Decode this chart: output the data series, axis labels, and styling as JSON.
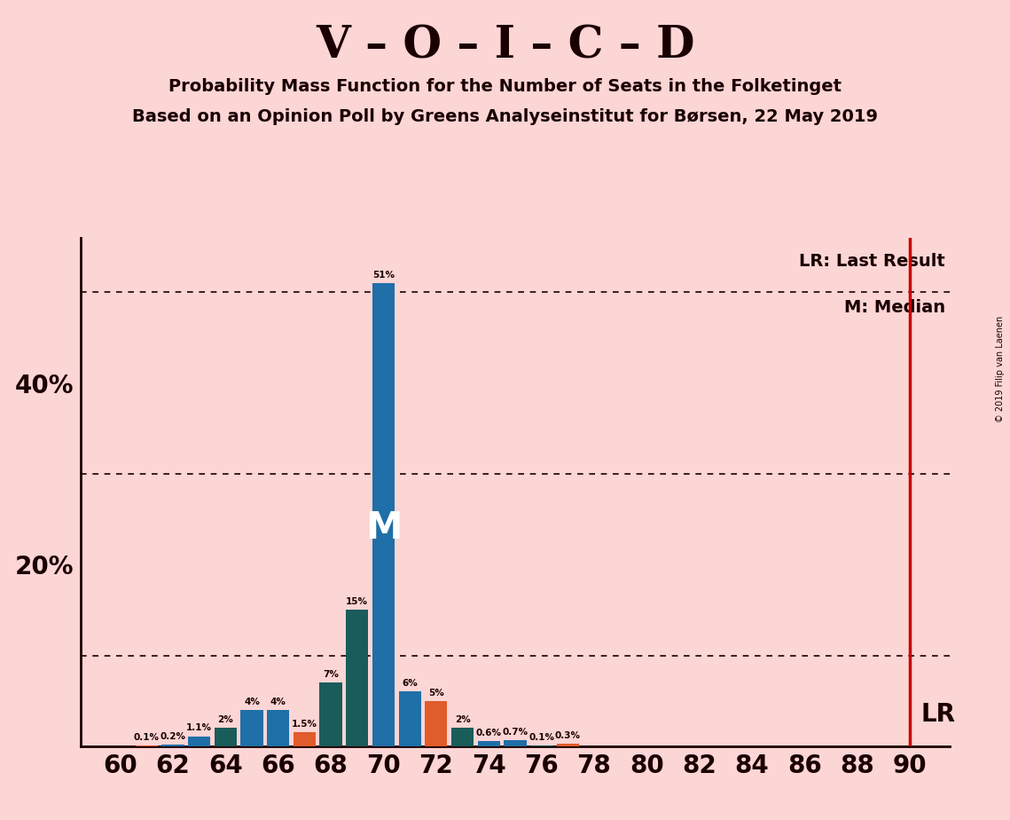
{
  "title": "V – O – I – C – D",
  "subtitle1": "Probability Mass Function for the Number of Seats in the Folketinget",
  "subtitle2": "Based on an Opinion Poll by Greens Analyseinstitut for Børsen, 22 May 2019",
  "copyright": "© 2019 Filip van Laenen",
  "background_color": "#fcd5d5",
  "seats": [
    60,
    61,
    62,
    63,
    64,
    65,
    66,
    67,
    68,
    69,
    70,
    71,
    72,
    73,
    74,
    75,
    76,
    77,
    78,
    79,
    80,
    81,
    82,
    83,
    84,
    85,
    86,
    87,
    88,
    89,
    90
  ],
  "values": [
    0.0,
    0.1,
    0.2,
    1.1,
    2.0,
    4.0,
    4.0,
    1.5,
    7.0,
    15.0,
    51.0,
    6.0,
    5.0,
    2.0,
    0.6,
    0.7,
    0.1,
    0.3,
    0.0,
    0.0,
    0.0,
    0.0,
    0.0,
    0.0,
    0.0,
    0.0,
    0.0,
    0.0,
    0.0,
    0.0,
    0.0
  ],
  "bar_colors_map": {
    "60": "#e05c2a",
    "61": "#e05c2a",
    "62": "#1f6fa8",
    "63": "#1f6fa8",
    "64": "#1a5c5a",
    "65": "#1f6fa8",
    "66": "#1f6fa8",
    "67": "#e05c2a",
    "68": "#1a5c5a",
    "69": "#1a5c5a",
    "70": "#1f6fa8",
    "71": "#1f6fa8",
    "72": "#e05c2a",
    "73": "#1a5c5a",
    "74": "#1f6fa8",
    "75": "#1f6fa8",
    "76": "#1a5c5a",
    "77": "#e05c2a",
    "78": "#1f6fa8",
    "79": "#1f6fa8",
    "80": "#1f6fa8",
    "81": "#1f6fa8",
    "82": "#1f6fa8",
    "83": "#1f6fa8",
    "84": "#1f6fa8",
    "85": "#1f6fa8",
    "86": "#1f6fa8",
    "87": "#1f6fa8",
    "88": "#1f6fa8",
    "89": "#1f6fa8",
    "90": "#e05c2a"
  },
  "median_seat": 70,
  "lr_seat": 90,
  "blue_color": "#1f6fa8",
  "teal_color": "#1a5c5a",
  "orange_color": "#e05c2a",
  "lr_color": "#cc0000",
  "axis_line_color": "#1a0000",
  "text_color": "#1a0000",
  "ytick_labeled": [
    20,
    40
  ],
  "ytick_labeled_labels": [
    "20%",
    "40%"
  ],
  "ytick_dotted": [
    10,
    30,
    50
  ],
  "xtick_seats": [
    60,
    62,
    64,
    66,
    68,
    70,
    72,
    74,
    76,
    78,
    80,
    82,
    84,
    86,
    88,
    90
  ],
  "ymax": 56,
  "bar_width": 0.85
}
